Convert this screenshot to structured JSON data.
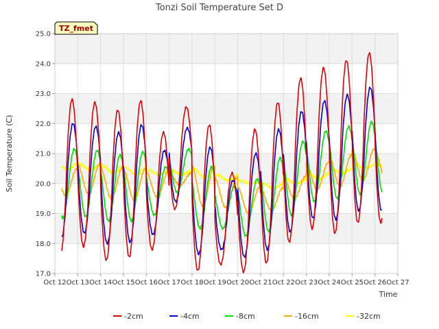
{
  "chart_data": {
    "type": "line",
    "title": "Tonzi Soil Temperature Set D",
    "xlabel": "Time",
    "ylabel": "Soil Temperature (C)",
    "ylim": [
      17.0,
      25.0
    ],
    "xlim": [
      12,
      27
    ],
    "y_ticks": [
      "17.0",
      "18.0",
      "19.0",
      "20.0",
      "21.0",
      "22.0",
      "23.0",
      "24.0",
      "25.0"
    ],
    "x_ticks": [
      "Oct 12",
      "Oct 13",
      "Oct 14",
      "Oct 15",
      "Oct 16",
      "Oct 17",
      "Oct 18",
      "Oct 19",
      "Oct 20",
      "Oct 21",
      "Oct 22",
      "Oct 23",
      "Oct 24",
      "Oct 25",
      "Oct 26",
      "Oct 27"
    ],
    "grid": true,
    "legend_position": "bottom",
    "annotation": "TZ_fmet",
    "x_start": 12.3,
    "x_end": 26.3,
    "series": [
      {
        "name": "-2cm",
        "color": "#dd0000",
        "min": [
          17.65,
          17.9,
          17.45,
          17.55,
          17.8,
          19.15,
          17.1,
          17.3,
          17.05,
          17.35,
          18.05,
          18.5,
          18.35,
          18.7
        ],
        "max": [
          22.8,
          22.7,
          22.45,
          22.75,
          21.7,
          22.55,
          21.95,
          20.35,
          21.8,
          22.7,
          23.5,
          23.85,
          24.1,
          24.35
        ]
      },
      {
        "name": "-4cm",
        "color": "#0000cc",
        "min": [
          18.2,
          18.35,
          18.0,
          18.05,
          18.3,
          19.4,
          17.65,
          17.8,
          17.55,
          17.8,
          18.4,
          18.85,
          18.8,
          19.1
        ],
        "max": [
          22.0,
          21.9,
          21.7,
          21.95,
          21.1,
          21.85,
          21.2,
          20.1,
          21.0,
          21.8,
          22.4,
          22.75,
          22.95,
          23.2
        ]
      },
      {
        "name": "-8cm",
        "color": "#00dd00",
        "min": [
          18.85,
          18.9,
          18.75,
          18.75,
          18.95,
          19.7,
          18.5,
          18.5,
          18.25,
          18.4,
          18.95,
          19.4,
          19.5,
          19.65
        ],
        "max": [
          21.15,
          21.1,
          20.95,
          21.05,
          20.55,
          21.15,
          20.55,
          19.9,
          20.15,
          20.85,
          21.4,
          21.75,
          21.9,
          22.05
        ]
      },
      {
        "name": "-16cm",
        "color": "#ffaa00",
        "min": [
          19.6,
          19.65,
          19.5,
          19.45,
          19.55,
          19.95,
          19.25,
          19.2,
          19.0,
          19.1,
          19.5,
          19.8,
          19.9,
          20.1
        ],
        "max": [
          20.5,
          20.65,
          20.55,
          20.5,
          20.4,
          20.35,
          20.6,
          20.2,
          19.9,
          19.85,
          20.25,
          20.7,
          20.95,
          21.15
        ]
      },
      {
        "name": "-32cm",
        "color": "#ffff00",
        "min": [
          20.45,
          20.45,
          20.35,
          20.3,
          20.3,
          20.3,
          20.2,
          20.1,
          20.0,
          19.85,
          20.0,
          20.15,
          20.35,
          20.5
        ],
        "max": [
          20.7,
          20.65,
          20.6,
          20.55,
          20.45,
          20.45,
          20.5,
          20.3,
          20.1,
          20.0,
          20.15,
          20.35,
          20.5,
          20.65
        ]
      }
    ]
  }
}
